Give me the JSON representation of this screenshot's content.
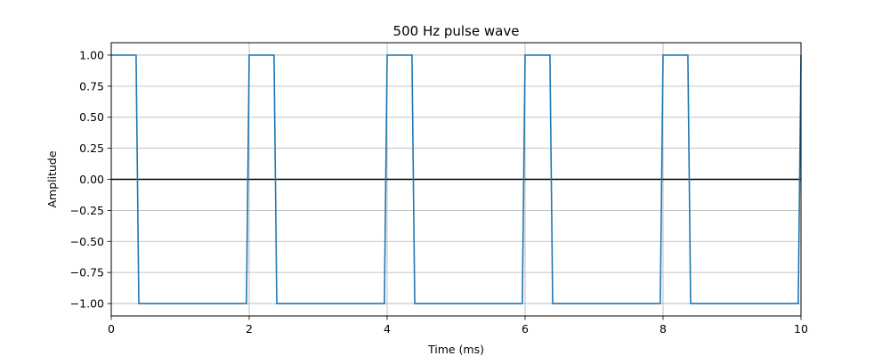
{
  "chart_data": {
    "type": "line",
    "title": "500 Hz pulse wave",
    "xlabel": "Time (ms)",
    "ylabel": "Amplitude",
    "xlim": [
      0,
      10
    ],
    "ylim": [
      -1.1,
      1.1
    ],
    "xticks": [
      0,
      2,
      4,
      6,
      8,
      10
    ],
    "xtick_labels": [
      "0",
      "2",
      "4",
      "6",
      "8",
      "10"
    ],
    "yticks": [
      -1.0,
      -0.75,
      -0.5,
      -0.25,
      0.0,
      0.25,
      0.5,
      0.75,
      1.0
    ],
    "ytick_labels": [
      "−1.00",
      "−0.75",
      "−0.50",
      "−0.25",
      "0.00",
      "0.25",
      "0.50",
      "0.75",
      "1.00"
    ],
    "grid": true,
    "reference_line": {
      "y": 0,
      "color": "#000000"
    },
    "series": [
      {
        "color": "#1f77b4",
        "x": [
          0,
          0.36,
          0.4,
          1.96,
          2.0,
          2.36,
          2.4,
          3.96,
          4.0,
          4.36,
          4.4,
          5.96,
          6.0,
          6.36,
          6.4,
          7.96,
          8.0,
          8.36,
          8.4,
          9.96,
          10.0
        ],
        "y": [
          1,
          1,
          -1,
          -1,
          1,
          1,
          -1,
          -1,
          1,
          1,
          -1,
          -1,
          1,
          1,
          -1,
          -1,
          1,
          1,
          -1,
          -1,
          1
        ]
      }
    ]
  }
}
